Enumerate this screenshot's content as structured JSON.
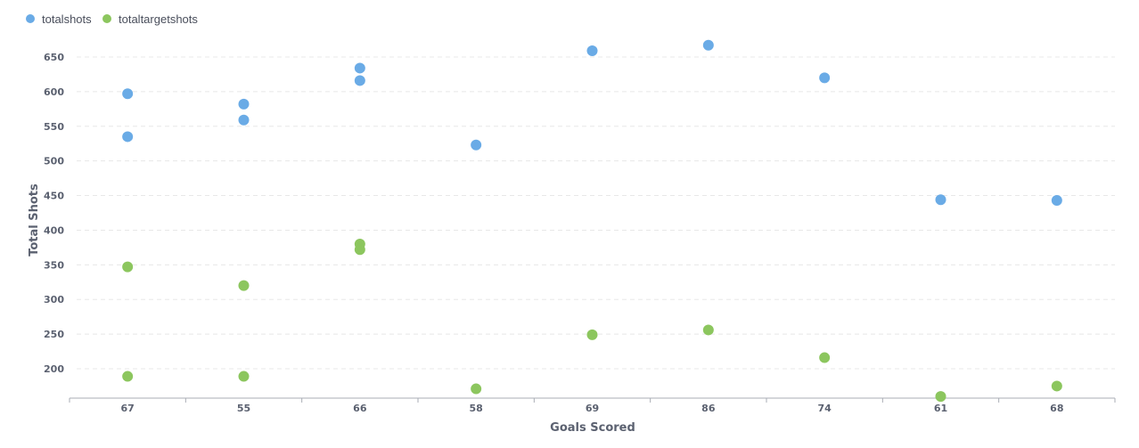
{
  "chart_data": {
    "type": "scatter",
    "xlabel": "Goals Scored",
    "ylabel": "Total Shots",
    "categories": [
      "67",
      "55",
      "66",
      "58",
      "69",
      "86",
      "74",
      "61",
      "68"
    ],
    "ylim": [
      160,
      670
    ],
    "yticks": [
      200,
      250,
      300,
      350,
      400,
      450,
      500,
      550,
      600,
      650
    ],
    "grid": true,
    "legend_position": "top-left",
    "series": [
      {
        "name": "totalshots",
        "color": "#6aabe6",
        "points": [
          {
            "x": "67",
            "y": 597
          },
          {
            "x": "67",
            "y": 535
          },
          {
            "x": "55",
            "y": 582
          },
          {
            "x": "55",
            "y": 559
          },
          {
            "x": "66",
            "y": 634
          },
          {
            "x": "66",
            "y": 616
          },
          {
            "x": "58",
            "y": 523
          },
          {
            "x": "69",
            "y": 659
          },
          {
            "x": "86",
            "y": 667
          },
          {
            "x": "74",
            "y": 620
          },
          {
            "x": "61",
            "y": 444
          },
          {
            "x": "68",
            "y": 443
          }
        ]
      },
      {
        "name": "totaltargetshots",
        "color": "#8cc65e",
        "points": [
          {
            "x": "67",
            "y": 347
          },
          {
            "x": "67",
            "y": 189
          },
          {
            "x": "55",
            "y": 320
          },
          {
            "x": "55",
            "y": 189
          },
          {
            "x": "66",
            "y": 380
          },
          {
            "x": "66",
            "y": 372
          },
          {
            "x": "58",
            "y": 171
          },
          {
            "x": "69",
            "y": 249
          },
          {
            "x": "86",
            "y": 256
          },
          {
            "x": "74",
            "y": 216
          },
          {
            "x": "61",
            "y": 160
          },
          {
            "x": "68",
            "y": 175
          }
        ]
      }
    ]
  }
}
